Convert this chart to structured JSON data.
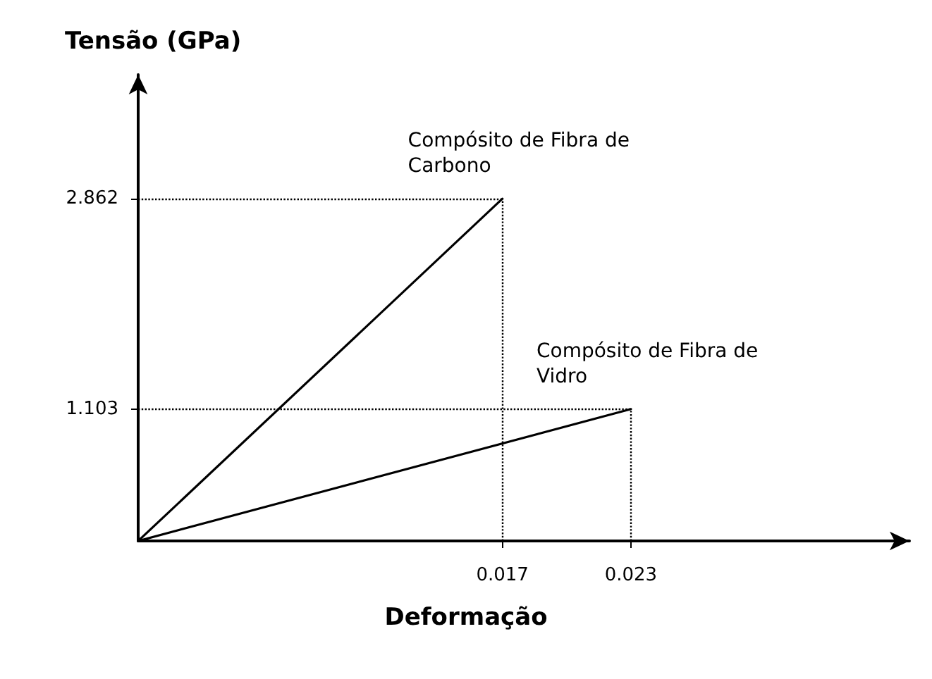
{
  "chart_data": {
    "type": "line",
    "ylabel": "Tensão (GPa)",
    "xlabel": "Deformação",
    "series": [
      {
        "name": "Compósito de Fibra de Carbono",
        "color": "#000000",
        "x": [
          0,
          0.017
        ],
        "values": [
          0,
          2.862
        ]
      },
      {
        "name": "Compósito de Fibra de Vidro",
        "color": "#000000",
        "x": [
          0,
          0.023
        ],
        "values": [
          0,
          1.103
        ]
      }
    ],
    "xlim": [
      0,
      0.036
    ],
    "ylim": [
      0,
      3.9
    ],
    "xticks": [
      0.017,
      0.023
    ],
    "yticks": [
      1.103,
      2.862
    ],
    "ref_lines": [
      {
        "axis": "x",
        "value": 0.017,
        "line_style": "dotted"
      },
      {
        "axis": "x",
        "value": 0.023,
        "line_style": "dotted"
      },
      {
        "axis": "y",
        "value": 2.862,
        "line_style": "dotted"
      },
      {
        "axis": "y",
        "value": 1.103,
        "line_style": "dotted"
      }
    ],
    "grid": false,
    "legend": false,
    "marker": "none",
    "line_style": "solid"
  }
}
